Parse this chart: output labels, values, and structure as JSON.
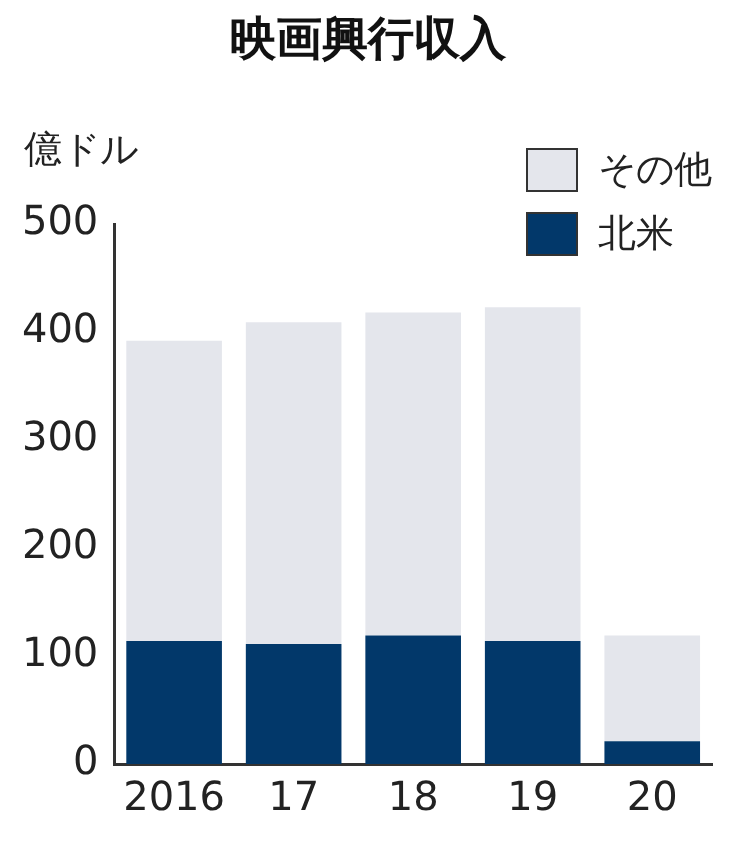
{
  "chart_data": {
    "type": "bar",
    "title": "映画興行収入",
    "ylabel": "億ドル",
    "categories": [
      "2016",
      "17",
      "18",
      "19",
      "20"
    ],
    "stacked": true,
    "legend": "top right",
    "grid": false,
    "series": [
      {
        "name": "北米",
        "color": "#02386a",
        "values": [
          114,
          111,
          119,
          114,
          21
        ]
      },
      {
        "name": "その他",
        "color": "#e4e6ec",
        "values": [
          278,
          298,
          299,
          309,
          98
        ]
      }
    ],
    "ylim": [
      0,
      500
    ],
    "yticks": [
      0,
      100,
      200,
      300,
      400,
      500
    ]
  }
}
